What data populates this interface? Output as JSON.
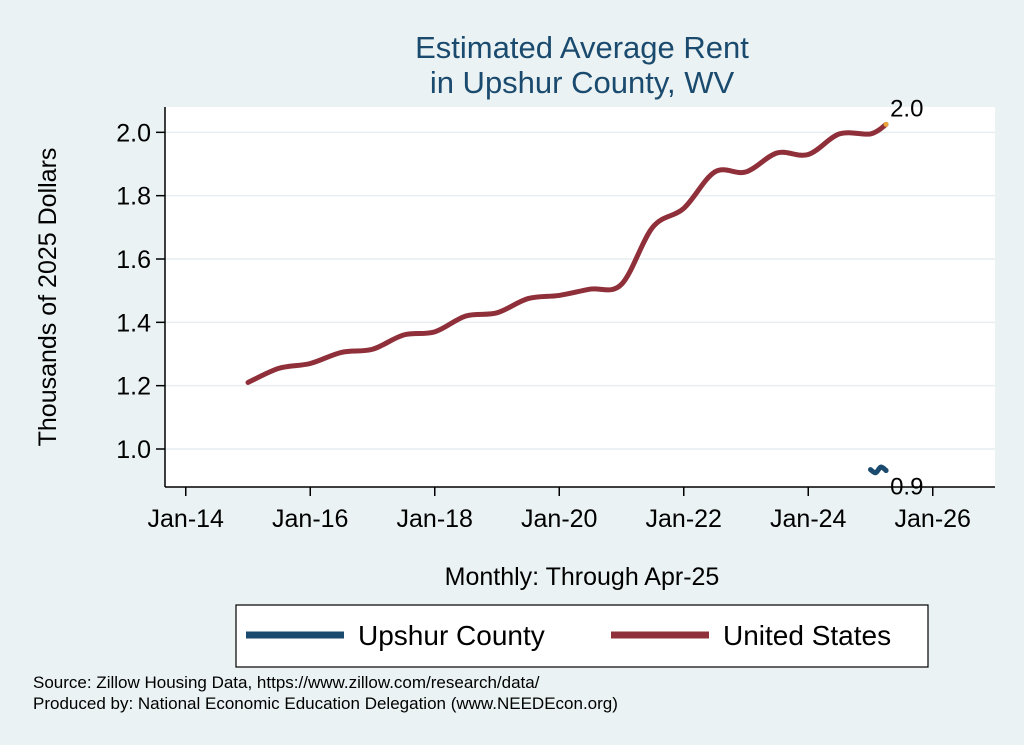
{
  "chart_data": {
    "type": "line",
    "title_lines": [
      "Estimated Average Rent",
      "in Upshur County, WV"
    ],
    "ylabel": "Thousands of 2025 Dollars",
    "xlabel": "Monthly: Through Apr-25",
    "xlim": [
      "2013-09",
      "2027-01"
    ],
    "ylim": [
      0.88,
      2.08
    ],
    "grid": true,
    "x_ticks": [
      "Jan-14",
      "Jan-16",
      "Jan-18",
      "Jan-20",
      "Jan-22",
      "Jan-24",
      "Jan-26"
    ],
    "y_ticks": [
      "1.0",
      "1.2",
      "1.4",
      "1.6",
      "1.8",
      "2.0"
    ],
    "legend_position": "bottom",
    "series": [
      {
        "name": "Upshur County",
        "color": "#1a4a6e",
        "end_label": "0.9",
        "points": [
          [
            "2025-01",
            0.935
          ],
          [
            "2025-02",
            0.925
          ],
          [
            "2025-03",
            0.943
          ],
          [
            "2025-04",
            0.932
          ]
        ]
      },
      {
        "name": "United States",
        "color": "#8f2f3a",
        "end_label": "2.0",
        "points": [
          [
            "2015-01",
            1.21
          ],
          [
            "2015-07",
            1.255
          ],
          [
            "2016-01",
            1.27
          ],
          [
            "2016-07",
            1.305
          ],
          [
            "2017-01",
            1.315
          ],
          [
            "2017-07",
            1.36
          ],
          [
            "2018-01",
            1.37
          ],
          [
            "2018-07",
            1.42
          ],
          [
            "2019-01",
            1.43
          ],
          [
            "2019-07",
            1.475
          ],
          [
            "2020-01",
            1.485
          ],
          [
            "2020-07",
            1.505
          ],
          [
            "2021-01",
            1.52
          ],
          [
            "2021-07",
            1.7
          ],
          [
            "2022-01",
            1.76
          ],
          [
            "2022-07",
            1.875
          ],
          [
            "2023-01",
            1.875
          ],
          [
            "2023-07",
            1.935
          ],
          [
            "2024-01",
            1.93
          ],
          [
            "2024-07",
            1.995
          ],
          [
            "2025-01",
            1.995
          ],
          [
            "2025-04",
            2.025
          ]
        ]
      }
    ]
  },
  "footer": {
    "source": "Source: Zillow Housing Data, https://www.zillow.com/research/data/",
    "produced_by": "Produced by: National Economic Education Delegation (www.NEEDEcon.org)"
  }
}
